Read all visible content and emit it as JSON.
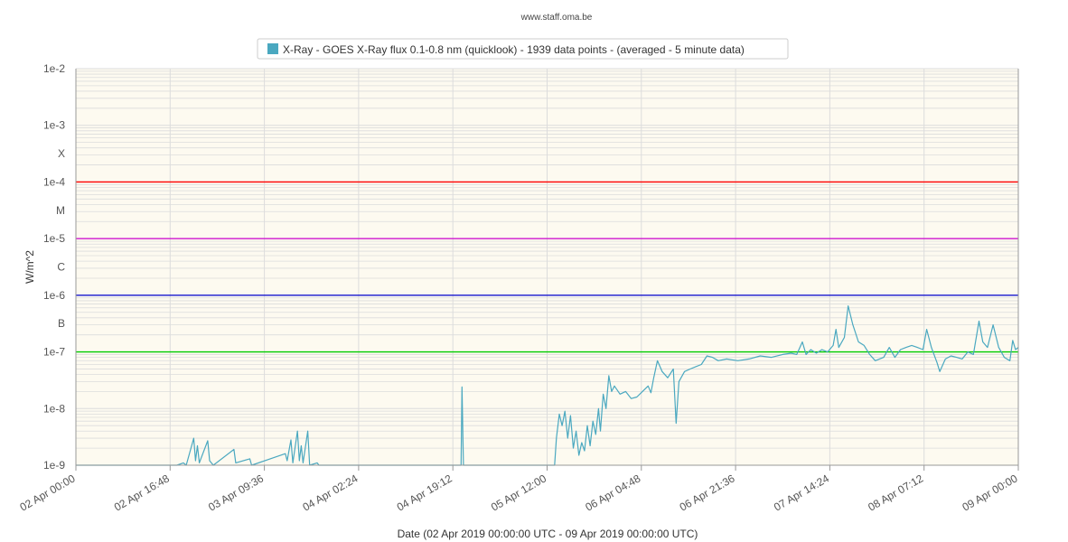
{
  "header": {
    "source": "www.staff.oma.be"
  },
  "colors": {
    "plot_background": "#fdfaf0",
    "series": "#4aa8c0",
    "x_class": "#ff0000",
    "m_class": "#cc00cc",
    "c_class": "#0000cc",
    "b_class": "#00cc00",
    "grid": "#dcdcdc",
    "axis": "#999999"
  },
  "chart_data": {
    "type": "line",
    "title": "",
    "legend": {
      "position": "top-center",
      "entries": [
        "X-Ray - GOES X-Ray flux 0.1-0.8 nm (quicklook) - 1939 data points -  (averaged - 5 minute data)"
      ]
    },
    "xlabel": "Date (02 Apr 2019 00:00:00 UTC - 09 Apr 2019 00:00:00 UTC)",
    "ylabel": "W/m^2",
    "y_scale": "log",
    "ylim": [
      1e-09,
      0.01
    ],
    "xlim": [
      "2019-04-02 00:00",
      "2019-04-09 00:00"
    ],
    "x_tick_labels": [
      "02 Apr 00:00",
      "02 Apr 16:48",
      "03 Apr 09:36",
      "04 Apr 02:24",
      "04 Apr 19:12",
      "05 Apr 12:00",
      "06 Apr 04:48",
      "06 Apr 21:36",
      "07 Apr 14:24",
      "08 Apr 07:12",
      "09 Apr 00:00"
    ],
    "y_tick_labels": [
      {
        "value": 0.01,
        "label": "1e-2"
      },
      {
        "value": 0.001,
        "label": "1e-3"
      },
      {
        "value": 0.0003162,
        "label": "X"
      },
      {
        "value": 0.0001,
        "label": "1e-4"
      },
      {
        "value": 3.162e-05,
        "label": "M"
      },
      {
        "value": 1e-05,
        "label": "1e-5"
      },
      {
        "value": 3.162e-06,
        "label": "C"
      },
      {
        "value": 1e-06,
        "label": "1e-6"
      },
      {
        "value": 3.162e-07,
        "label": "B"
      },
      {
        "value": 1e-07,
        "label": "1e-7"
      },
      {
        "value": 1e-08,
        "label": "1e-8"
      },
      {
        "value": 1e-09,
        "label": "1e-9"
      }
    ],
    "thresholds": [
      {
        "class": "X",
        "value": 0.0001,
        "color": "#ff0000"
      },
      {
        "class": "M",
        "value": 1e-05,
        "color": "#cc00cc"
      },
      {
        "class": "C",
        "value": 1e-06,
        "color": "#0000cc"
      },
      {
        "class": "B",
        "value": 1e-07,
        "color": "#00cc00"
      }
    ],
    "grid": true,
    "series": [
      {
        "name": "X-Ray - GOES X-Ray flux 0.1-0.8 nm (quicklook) - 1939 data points -  (averaged - 5 minute data)",
        "points": [
          [
            "2019-04-02 00:00",
            1e-09
          ],
          [
            "2019-04-02 18:00",
            1e-09
          ],
          [
            "2019-04-02 19:10",
            1.1e-09
          ],
          [
            "2019-04-02 19:40",
            1e-09
          ],
          [
            "2019-04-02 21:00",
            3e-09
          ],
          [
            "2019-04-02 21:20",
            1.2e-09
          ],
          [
            "2019-04-02 21:40",
            2.2e-09
          ],
          [
            "2019-04-02 22:00",
            1.1e-09
          ],
          [
            "2019-04-02 23:30",
            2.7e-09
          ],
          [
            "2019-04-02 23:50",
            1.2e-09
          ],
          [
            "2019-04-03 00:30",
            1e-09
          ],
          [
            "2019-04-03 04:10",
            1.9e-09
          ],
          [
            "2019-04-03 04:30",
            1.1e-09
          ],
          [
            "2019-04-03 07:00",
            1.3e-09
          ],
          [
            "2019-04-03 07:20",
            1e-09
          ],
          [
            "2019-04-03 13:20",
            1.6e-09
          ],
          [
            "2019-04-03 13:40",
            1.2e-09
          ],
          [
            "2019-04-03 14:20",
            2.8e-09
          ],
          [
            "2019-04-03 14:40",
            1.1e-09
          ],
          [
            "2019-04-03 15:30",
            4e-09
          ],
          [
            "2019-04-03 15:50",
            1.2e-09
          ],
          [
            "2019-04-03 16:10",
            2.2e-09
          ],
          [
            "2019-04-03 16:30",
            1.1e-09
          ],
          [
            "2019-04-03 17:20",
            4e-09
          ],
          [
            "2019-04-03 17:40",
            1e-09
          ],
          [
            "2019-04-03 19:00",
            1.1e-09
          ],
          [
            "2019-04-03 19:20",
            1e-09
          ],
          [
            "2019-04-04 20:40",
            1e-09
          ],
          [
            "2019-04-04 20:50",
            2.4e-08
          ],
          [
            "2019-04-04 21:05",
            1e-09
          ],
          [
            "2019-04-05 13:20",
            1e-09
          ],
          [
            "2019-04-05 13:40",
            3e-09
          ],
          [
            "2019-04-05 14:10",
            8e-09
          ],
          [
            "2019-04-05 14:40",
            5e-09
          ],
          [
            "2019-04-05 15:10",
            9e-09
          ],
          [
            "2019-04-05 15:40",
            3e-09
          ],
          [
            "2019-04-05 16:10",
            7.5e-09
          ],
          [
            "2019-04-05 16:40",
            2e-09
          ],
          [
            "2019-04-05 17:10",
            4e-09
          ],
          [
            "2019-04-05 17:40",
            1.5e-09
          ],
          [
            "2019-04-05 18:10",
            2.5e-09
          ],
          [
            "2019-04-05 18:40",
            1.8e-09
          ],
          [
            "2019-04-05 19:10",
            5e-09
          ],
          [
            "2019-04-05 19:40",
            2.2e-09
          ],
          [
            "2019-04-05 20:10",
            6e-09
          ],
          [
            "2019-04-05 20:40",
            3.5e-09
          ],
          [
            "2019-04-05 21:10",
            1e-08
          ],
          [
            "2019-04-05 21:30",
            4e-09
          ],
          [
            "2019-04-05 22:00",
            1.8e-08
          ],
          [
            "2019-04-05 22:30",
            1e-08
          ],
          [
            "2019-04-05 23:00",
            3.8e-08
          ],
          [
            "2019-04-05 23:30",
            2e-08
          ],
          [
            "2019-04-06 00:00",
            2.5e-08
          ],
          [
            "2019-04-06 01:00",
            1.8e-08
          ],
          [
            "2019-04-06 02:00",
            2e-08
          ],
          [
            "2019-04-06 03:00",
            1.5e-08
          ],
          [
            "2019-04-06 04:00",
            1.6e-08
          ],
          [
            "2019-04-06 05:00",
            2e-08
          ],
          [
            "2019-04-06 06:00",
            2.5e-08
          ],
          [
            "2019-04-06 06:30",
            1.9e-08
          ],
          [
            "2019-04-06 07:00",
            3.5e-08
          ],
          [
            "2019-04-06 07:40",
            7e-08
          ],
          [
            "2019-04-06 08:30",
            4.5e-08
          ],
          [
            "2019-04-06 09:30",
            3.5e-08
          ],
          [
            "2019-04-06 10:30",
            5e-08
          ],
          [
            "2019-04-06 11:00",
            5.5e-09
          ],
          [
            "2019-04-06 11:30",
            3e-08
          ],
          [
            "2019-04-06 12:30",
            4.5e-08
          ],
          [
            "2019-04-06 13:30",
            5e-08
          ],
          [
            "2019-04-06 14:30",
            5.5e-08
          ],
          [
            "2019-04-06 15:30",
            6e-08
          ],
          [
            "2019-04-06 16:30",
            8.5e-08
          ],
          [
            "2019-04-06 17:30",
            8e-08
          ],
          [
            "2019-04-06 18:30",
            7e-08
          ],
          [
            "2019-04-06 20:00",
            7.5e-08
          ],
          [
            "2019-04-06 22:00",
            7e-08
          ],
          [
            "2019-04-07 00:00",
            7.5e-08
          ],
          [
            "2019-04-07 02:00",
            8.5e-08
          ],
          [
            "2019-04-07 04:00",
            8e-08
          ],
          [
            "2019-04-07 06:00",
            9e-08
          ],
          [
            "2019-04-07 07:30",
            9.5e-08
          ],
          [
            "2019-04-07 08:30",
            9e-08
          ],
          [
            "2019-04-07 09:30",
            1.5e-07
          ],
          [
            "2019-04-07 10:10",
            9e-08
          ],
          [
            "2019-04-07 11:00",
            1.1e-07
          ],
          [
            "2019-04-07 12:00",
            9.5e-08
          ],
          [
            "2019-04-07 13:00",
            1.1e-07
          ],
          [
            "2019-04-07 14:00",
            1e-07
          ],
          [
            "2019-04-07 15:00",
            1.3e-07
          ],
          [
            "2019-04-07 15:30",
            2.5e-07
          ],
          [
            "2019-04-07 16:00",
            1.2e-07
          ],
          [
            "2019-04-07 17:00",
            1.8e-07
          ],
          [
            "2019-04-07 17:40",
            6.5e-07
          ],
          [
            "2019-04-07 18:30",
            3e-07
          ],
          [
            "2019-04-07 19:30",
            1.5e-07
          ],
          [
            "2019-04-07 20:30",
            1.3e-07
          ],
          [
            "2019-04-07 21:30",
            9e-08
          ],
          [
            "2019-04-07 22:30",
            7e-08
          ],
          [
            "2019-04-08 00:00",
            8e-08
          ],
          [
            "2019-04-08 01:00",
            1.2e-07
          ],
          [
            "2019-04-08 02:00",
            8e-08
          ],
          [
            "2019-04-08 03:00",
            1.1e-07
          ],
          [
            "2019-04-08 04:00",
            1.2e-07
          ],
          [
            "2019-04-08 05:00",
            1.3e-07
          ],
          [
            "2019-04-08 06:00",
            1.2e-07
          ],
          [
            "2019-04-08 07:00",
            1.1e-07
          ],
          [
            "2019-04-08 07:40",
            2.5e-07
          ],
          [
            "2019-04-08 08:30",
            1.2e-07
          ],
          [
            "2019-04-08 09:30",
            6.5e-08
          ],
          [
            "2019-04-08 10:00",
            4.5e-08
          ],
          [
            "2019-04-08 11:00",
            7.5e-08
          ],
          [
            "2019-04-08 12:00",
            8.5e-08
          ],
          [
            "2019-04-08 13:00",
            8e-08
          ],
          [
            "2019-04-08 14:00",
            7.5e-08
          ],
          [
            "2019-04-08 15:00",
            1e-07
          ],
          [
            "2019-04-08 16:00",
            9e-08
          ],
          [
            "2019-04-08 17:00",
            3.5e-07
          ],
          [
            "2019-04-08 17:40",
            1.5e-07
          ],
          [
            "2019-04-08 18:30",
            1.2e-07
          ],
          [
            "2019-04-08 19:30",
            3e-07
          ],
          [
            "2019-04-08 20:30",
            1.2e-07
          ],
          [
            "2019-04-08 21:30",
            8e-08
          ],
          [
            "2019-04-08 22:30",
            7e-08
          ],
          [
            "2019-04-08 23:00",
            1.6e-07
          ],
          [
            "2019-04-08 23:30",
            1.1e-07
          ],
          [
            "2019-04-09 00:00",
            1.2e-07
          ]
        ]
      }
    ]
  }
}
